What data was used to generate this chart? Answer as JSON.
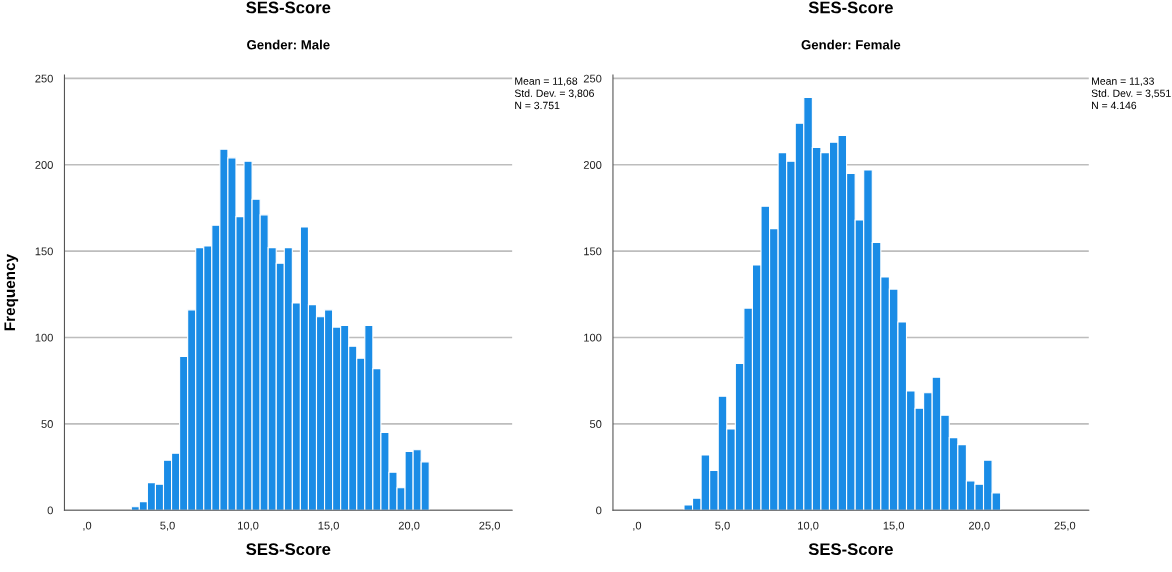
{
  "chart_data": [
    {
      "type": "histogram",
      "title": "SES-Score",
      "subtitle": "Gender: Male",
      "xlabel": "SES-Score",
      "ylabel": "Frequency",
      "bins": [
        2.75,
        3.25,
        3.75,
        4.25,
        4.75,
        5.25,
        5.75,
        6.25,
        6.75,
        7.25,
        7.75,
        8.25,
        8.75,
        9.25,
        9.75,
        10.25,
        10.75,
        11.25,
        11.75,
        12.25,
        12.75,
        13.25,
        13.75,
        14.25,
        14.75,
        15.25,
        15.75,
        16.25,
        16.75,
        17.25,
        17.75,
        18.25,
        18.75,
        19.25,
        19.75,
        20.25,
        20.75,
        21.25
      ],
      "values": [
        2,
        5,
        16,
        15,
        29,
        33,
        89,
        116,
        152,
        153,
        165,
        209,
        204,
        170,
        202,
        180,
        171,
        152,
        143,
        152,
        120,
        164,
        119,
        112,
        116,
        106,
        107,
        95,
        88,
        107,
        82,
        45,
        22,
        13,
        34,
        35,
        28
      ],
      "color": "#1a8ce6",
      "xlim": [
        -1.4,
        26.4
      ],
      "ylim": [
        0,
        252
      ],
      "xticks": [
        {
          "value": 0,
          "label": ",0"
        },
        {
          "value": 5,
          "label": "5,0"
        },
        {
          "value": 10,
          "label": "10,0"
        },
        {
          "value": 15,
          "label": "15,0"
        },
        {
          "value": 20,
          "label": "20,0"
        },
        {
          "value": 25,
          "label": "25,0"
        }
      ],
      "yticks": [
        0,
        50,
        100,
        150,
        200,
        250
      ],
      "grid": "y",
      "legend": false,
      "annotations": [
        "Mean = 11,68",
        "Std. Dev. = 3,806",
        "N = 3.751"
      ]
    },
    {
      "type": "histogram",
      "title": "SES-Score",
      "subtitle": "Gender: Female",
      "xlabel": "SES-Score",
      "bins": [
        2.75,
        3.25,
        3.75,
        4.25,
        4.75,
        5.25,
        5.75,
        6.25,
        6.75,
        7.25,
        7.75,
        8.25,
        8.75,
        9.25,
        9.75,
        10.25,
        10.75,
        11.25,
        11.75,
        12.25,
        12.75,
        13.25,
        13.75,
        14.25,
        14.75,
        15.25,
        15.75,
        16.25,
        16.75,
        17.25,
        17.75,
        18.25,
        18.75,
        19.25,
        19.75,
        20.25,
        20.75,
        21.25
      ],
      "values": [
        3,
        7,
        32,
        23,
        66,
        47,
        85,
        117,
        142,
        176,
        163,
        207,
        202,
        224,
        239,
        210,
        207,
        213,
        217,
        195,
        168,
        197,
        155,
        135,
        128,
        109,
        69,
        59,
        68,
        77,
        55,
        42,
        38,
        17,
        15,
        29,
        10
      ],
      "color": "#1a8ce6",
      "xlim": [
        -1.4,
        26.4
      ],
      "ylim": [
        0,
        252
      ],
      "xticks": [
        {
          "value": 0,
          "label": ",0"
        },
        {
          "value": 5,
          "label": "5,0"
        },
        {
          "value": 10,
          "label": "10,0"
        },
        {
          "value": 15,
          "label": "15,0"
        },
        {
          "value": 20,
          "label": "20,0"
        },
        {
          "value": 25,
          "label": "25,0"
        }
      ],
      "yticks": [
        0,
        50,
        100,
        150,
        200,
        250
      ],
      "grid": "y",
      "legend": false,
      "annotations": [
        "Mean = 11,33",
        "Std. Dev. = 3,551",
        "N = 4.146"
      ]
    }
  ]
}
